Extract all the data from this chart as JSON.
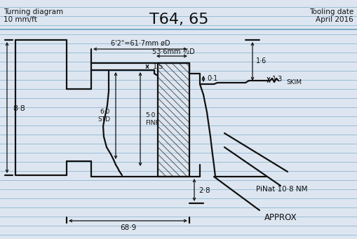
{
  "title": "T64, 65",
  "top_left_line1": "Turning diagram",
  "top_left_line2": "10 mm/ft",
  "top_right_line1": "Tooling date",
  "top_right_line2": "April 2016",
  "dim1": "6'2\"=61·7mm øD",
  "dim2": "53·6mm ½D",
  "label_88": "8·8",
  "label_15": "1·5",
  "label_01": "0·1",
  "label_16": "1·6",
  "label_13": "1·3",
  "label_28": "2·8",
  "label_689": "68·9",
  "label_skim": "SKIM",
  "label_pinat": "PiNat 10·8 NM",
  "label_approx": "APPROX",
  "bg_color": "#dde6f0",
  "line_color": "#111111",
  "rule_color": "#7aaacc",
  "figsize": [
    5.09,
    3.41
  ],
  "dpi": 100
}
